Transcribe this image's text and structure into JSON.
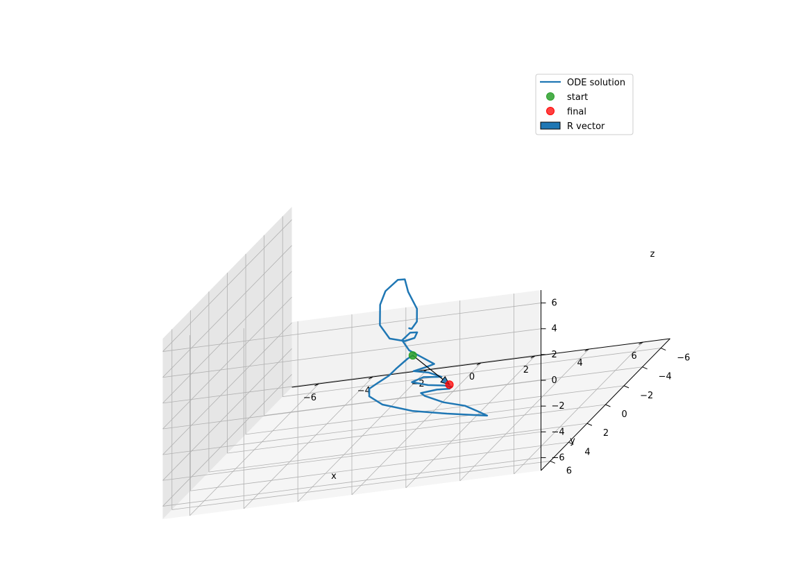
{
  "chart_data": {
    "type": "line",
    "projection": "3d",
    "title": "",
    "xlabel": "x",
    "ylabel": "y",
    "zlabel": "z",
    "xlim": [
      -7,
      7
    ],
    "ylim": [
      -7,
      7
    ],
    "zlim": [
      -7,
      7
    ],
    "xticks": [
      "−6",
      "−4",
      "−2",
      "0",
      "2",
      "4",
      "6"
    ],
    "yticks": [
      "−6",
      "−4",
      "−2",
      "0",
      "2",
      "4",
      "6"
    ],
    "zticks": [
      "−6",
      "−4",
      "−2",
      "0",
      "2",
      "4",
      "6"
    ],
    "grid": true,
    "legend_position": "top-right",
    "series": [
      {
        "name": "ODE solution",
        "kind": "line",
        "color": "#1f77b4",
        "points": [
          [
            -0.1,
            0.5,
            1.2
          ],
          [
            0.3,
            1.4,
            1.7
          ],
          [
            0.7,
            2.0,
            2.6
          ],
          [
            0.6,
            1.7,
            3.4
          ],
          [
            -0.1,
            0.6,
            4.1
          ],
          [
            -0.6,
            -0.5,
            4.4
          ],
          [
            -1.3,
            -1.8,
            3.6
          ],
          [
            -2.0,
            -2.5,
            2.4
          ],
          [
            -2.3,
            -2.8,
            1.2
          ],
          [
            -2.0,
            -1.9,
            0.2
          ],
          [
            -1.3,
            -0.9,
            -0.3
          ],
          [
            -0.5,
            -0.2,
            -0.2
          ],
          [
            0.0,
            0.2,
            0.2
          ],
          [
            0.2,
            0.5,
            0.8
          ],
          [
            -0.3,
            -0.2,
            0.4
          ],
          [
            -0.7,
            -0.5,
            -0.3
          ],
          [
            -0.3,
            -0.1,
            -0.9
          ],
          [
            0.3,
            0.3,
            -1.3
          ],
          [
            1.0,
            1.0,
            -1.5
          ],
          [
            0.6,
            0.6,
            -1.9
          ],
          [
            0.0,
            0.3,
            -2.3
          ],
          [
            0.6,
            0.4,
            -2.5
          ],
          [
            1.2,
            0.8,
            -2.7
          ],
          [
            0.4,
            0.4,
            -2.8
          ],
          [
            -0.1,
            0.2,
            -3.2
          ],
          [
            0.6,
            0.5,
            -3.4
          ],
          [
            1.3,
            0.8,
            -3.4
          ],
          [
            1.7,
            1.2,
            -3.3
          ],
          [
            1.5,
            0.8,
            -3.7
          ],
          [
            0.9,
            0.4,
            -3.9
          ],
          [
            0.2,
            0.1,
            -4.2
          ],
          [
            0.1,
            -0.6,
            -4.9
          ],
          [
            0.9,
            -0.3,
            -5.4
          ],
          [
            1.9,
            0.3,
            -5.5
          ],
          [
            2.7,
            1.3,
            -5.4
          ],
          [
            3.3,
            2.0,
            -5.4
          ],
          [
            2.6,
            1.4,
            -5.6
          ],
          [
            1.3,
            0.5,
            -5.8
          ],
          [
            -0.3,
            -0.5,
            -5.9
          ],
          [
            -1.8,
            -1.6,
            -5.8
          ],
          [
            -2.6,
            -2.5,
            -5.6
          ],
          [
            -2.7,
            -2.8,
            -5.2
          ],
          [
            -2.2,
            -2.3,
            -4.5
          ],
          [
            -1.5,
            -1.4,
            -3.5
          ],
          [
            -1.0,
            -0.8,
            -2.6
          ],
          [
            -0.4,
            -0.2,
            -1.6
          ],
          [
            -0.1,
            0.1,
            -1.2
          ]
        ]
      },
      {
        "name": "start",
        "kind": "point",
        "color": "#2ca02c",
        "point": [
          -0.1,
          0.1,
          -1.2
        ]
      },
      {
        "name": "final",
        "kind": "point",
        "color": "#ff0000",
        "point": [
          1.7,
          1.4,
          -3.0
        ]
      },
      {
        "name": "R vector",
        "kind": "arrow",
        "color": "#1f77b4",
        "edge_color": "#000000",
        "from": [
          -0.1,
          0.1,
          -1.2
        ],
        "to": [
          1.7,
          1.4,
          -3.0
        ]
      }
    ]
  }
}
